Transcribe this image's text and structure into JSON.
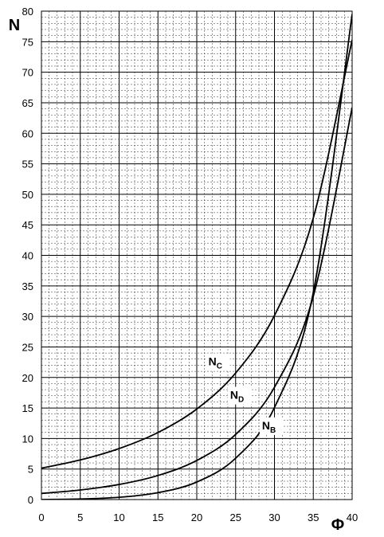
{
  "chart_data": {
    "type": "line",
    "title": "",
    "xlabel": "Φ",
    "ylabel": "N",
    "xlim": [
      0,
      40
    ],
    "ylim": [
      0,
      80
    ],
    "x_ticks": [
      0,
      5,
      10,
      15,
      20,
      25,
      30,
      35,
      40
    ],
    "y_ticks": [
      0,
      5,
      10,
      15,
      20,
      25,
      30,
      35,
      40,
      45,
      50,
      55,
      60,
      65,
      70,
      75,
      80
    ],
    "x_tick_labels": [
      "0",
      "5",
      "10",
      "15",
      "20",
      "25",
      "30",
      "35",
      "40"
    ],
    "y_tick_labels": [
      "0",
      "5",
      "10",
      "15",
      "20",
      "25",
      "30",
      "35",
      "40",
      "45",
      "50",
      "55",
      "60",
      "65",
      "70",
      "75",
      "80"
    ],
    "grid": true,
    "minor_grid": true,
    "legend": "none",
    "x": [
      0,
      5,
      10,
      15,
      20,
      25,
      30,
      35,
      40
    ],
    "series": [
      {
        "name": "NC",
        "label_main": "N",
        "label_sub": "C",
        "values": [
          5.14,
          6.49,
          8.35,
          10.98,
          14.83,
          20.72,
          30.14,
          46.12,
          75.31
        ]
      },
      {
        "name": "ND",
        "label_main": "N",
        "label_sub": "D",
        "values": [
          1.0,
          1.57,
          2.47,
          3.94,
          6.4,
          10.66,
          18.4,
          33.3,
          64.2
        ]
      },
      {
        "name": "NB",
        "label_main": "N",
        "label_sub": "B",
        "values": [
          0.0,
          0.09,
          0.37,
          1.13,
          2.87,
          6.77,
          15.07,
          33.92,
          79.5
        ]
      }
    ],
    "annotations": [
      {
        "series": "NC",
        "at_x": 21.5,
        "at_y": 22
      },
      {
        "series": "ND",
        "at_x": 24.3,
        "at_y": 16.5
      },
      {
        "series": "NB",
        "at_x": 28.4,
        "at_y": 11.5
      }
    ],
    "colors": {
      "line": "#000000",
      "grid": "#000000",
      "background": "#ffffff"
    }
  }
}
